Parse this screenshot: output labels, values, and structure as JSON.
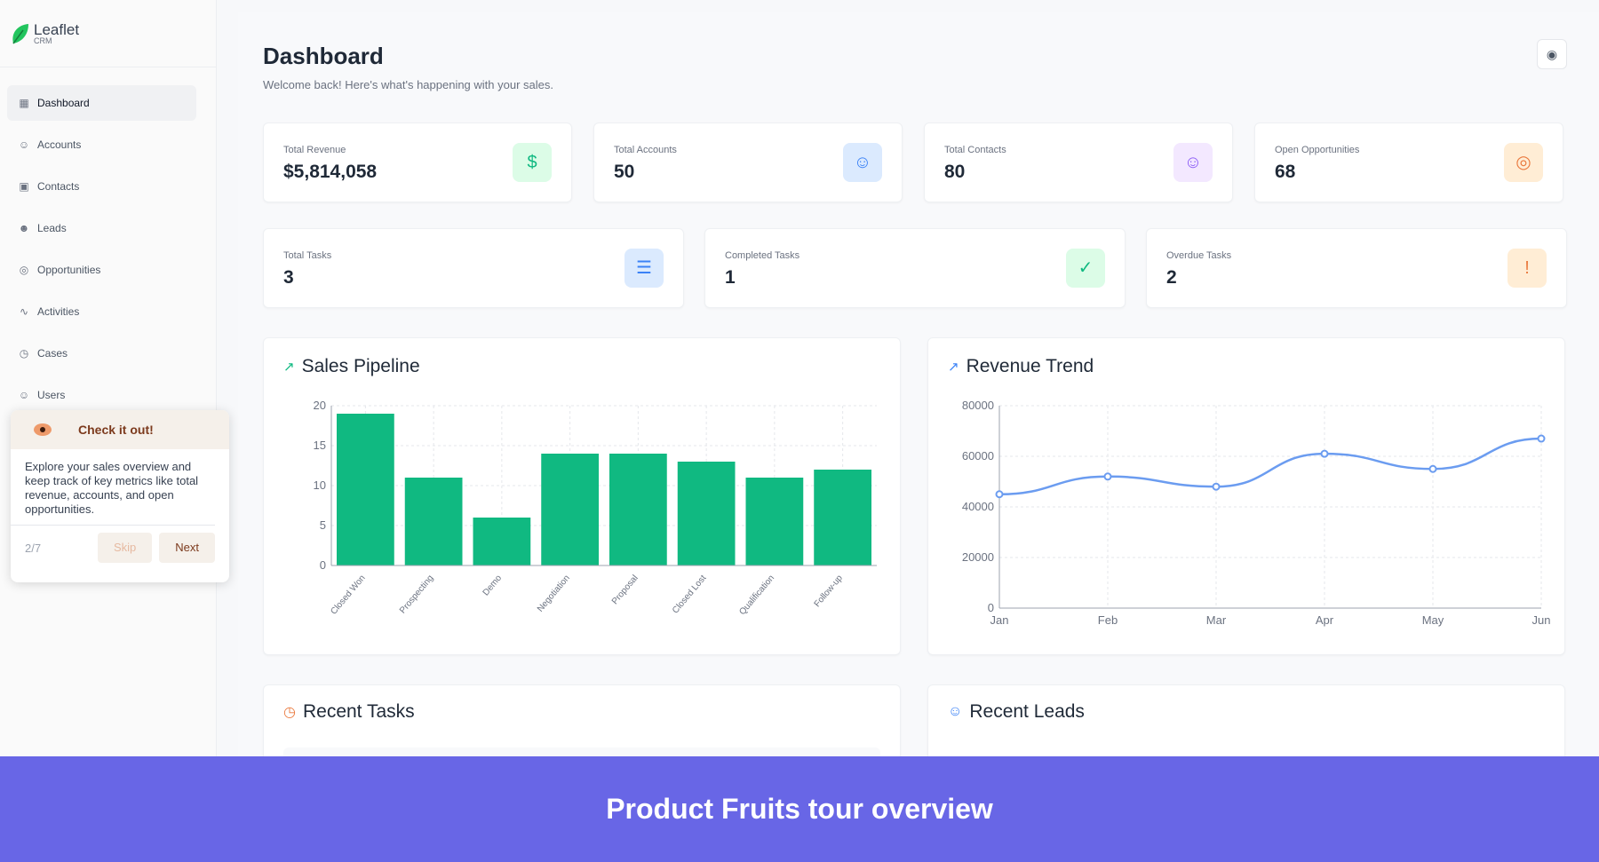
{
  "app": {
    "name": "Leaflet",
    "sub": "CRM"
  },
  "sidebar": {
    "items": [
      {
        "label": "Dashboard",
        "icon": "layout-icon",
        "active": true
      },
      {
        "label": "Accounts",
        "icon": "users-icon"
      },
      {
        "label": "Contacts",
        "icon": "contact-card-icon"
      },
      {
        "label": "Leads",
        "icon": "user-plus-icon"
      },
      {
        "label": "Opportunities",
        "icon": "target-icon"
      },
      {
        "label": "Activities",
        "icon": "activity-icon"
      },
      {
        "label": "Cases",
        "icon": "clock-icon"
      },
      {
        "label": "Users",
        "icon": "users-icon"
      }
    ]
  },
  "header": {
    "title": "Dashboard",
    "subtitle": "Welcome back! Here's what's happening with your sales."
  },
  "stats_row1": [
    {
      "label": "Total Revenue",
      "value": "$5,814,058",
      "icon": "dollar-icon",
      "color": "#10b981",
      "bg": "#dcfce7"
    },
    {
      "label": "Total Accounts",
      "value": "50",
      "icon": "users-icon",
      "color": "#3b82f6",
      "bg": "#dbeafe"
    },
    {
      "label": "Total Contacts",
      "value": "80",
      "icon": "users-icon",
      "color": "#8b5cf6",
      "bg": "#f3e8ff"
    },
    {
      "label": "Open Opportunities",
      "value": "68",
      "icon": "target-icon",
      "color": "#ea7a3f",
      "bg": "#ffedd5"
    }
  ],
  "stats_row2": [
    {
      "label": "Total Tasks",
      "value": "3",
      "icon": "list-icon",
      "color": "#3b82f6",
      "bg": "#dbeafe"
    },
    {
      "label": "Completed Tasks",
      "value": "1",
      "icon": "check-circle-icon",
      "color": "#10b981",
      "bg": "#dcfce7"
    },
    {
      "label": "Overdue Tasks",
      "value": "2",
      "icon": "alert-circle-icon",
      "color": "#ea7a3f",
      "bg": "#ffedd5"
    }
  ],
  "chart_data": [
    {
      "type": "bar",
      "title": "Sales Pipeline",
      "categories": [
        "Closed Won",
        "Prospecting",
        "Demo",
        "Negotiation",
        "Proposal",
        "Closed Lost",
        "Qualification",
        "Follow-up"
      ],
      "values": [
        19,
        11,
        6,
        14,
        14,
        13,
        11,
        12
      ],
      "ylim": [
        0,
        20
      ],
      "yticks": [
        0,
        5,
        10,
        15,
        20
      ],
      "grid": true,
      "color": "#10b981"
    },
    {
      "type": "line",
      "title": "Revenue Trend",
      "categories": [
        "Jan",
        "Feb",
        "Mar",
        "Apr",
        "May",
        "Jun"
      ],
      "values": [
        45000,
        52000,
        48000,
        61000,
        55000,
        67000
      ],
      "ylim": [
        0,
        80000
      ],
      "yticks": [
        0,
        20000,
        40000,
        60000,
        80000
      ],
      "grid": true,
      "color": "#6b9cf0"
    }
  ],
  "bottom": {
    "tasks_title": "Recent Tasks",
    "leads_title": "Recent Leads"
  },
  "tour": {
    "title": "Check it out!",
    "body": "Explore your sales overview and keep track of key metrics like total revenue, accounts, and open opportunities.",
    "step": "2/7",
    "skip": "Skip",
    "next": "Next"
  },
  "banner": {
    "text": "Product Fruits tour overview"
  }
}
